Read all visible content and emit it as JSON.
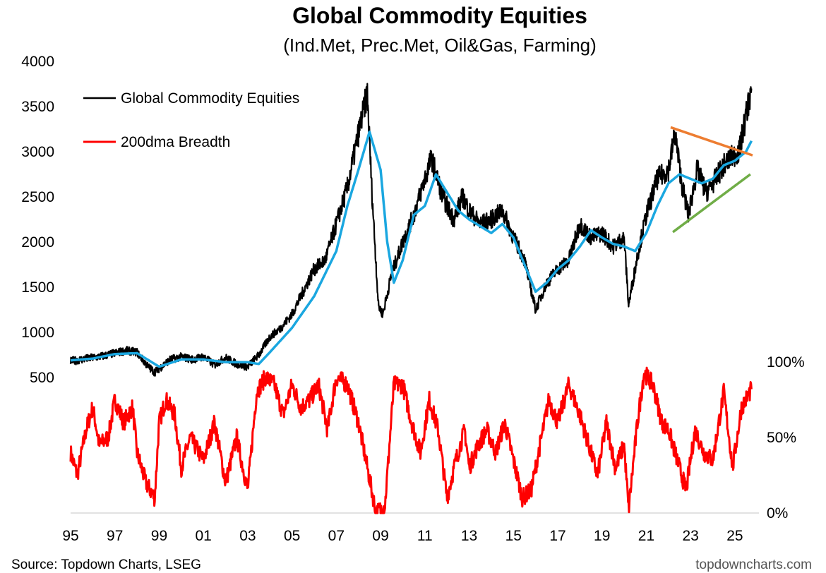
{
  "chart_data": {
    "type": "line",
    "title": "Global Commodity Equities",
    "subtitle": "(Ind.Met, Prec.Met, Oil&Gas, Farming)",
    "left_axis": {
      "ticks": [
        500,
        1000,
        1500,
        2000,
        2500,
        3000,
        3500,
        4000
      ],
      "range": [
        500,
        4000
      ]
    },
    "right_axis": {
      "ticks": [
        "0%",
        "50%",
        "100%"
      ],
      "values": [
        0,
        50,
        100
      ],
      "range": [
        0,
        100
      ]
    },
    "x_ticks": [
      "95",
      "97",
      "99",
      "01",
      "03",
      "05",
      "07",
      "09",
      "11",
      "13",
      "15",
      "17",
      "19",
      "21",
      "23",
      "25"
    ],
    "x_tick_years": [
      1995,
      1997,
      1999,
      2001,
      2003,
      2005,
      2007,
      2009,
      2011,
      2013,
      2015,
      2017,
      2019,
      2021,
      2023,
      2025
    ],
    "x_range": [
      1995,
      2025.8
    ],
    "legend": [
      {
        "label": "Global Commodity Equities",
        "color": "#000000"
      },
      {
        "label": "200dma Breadth",
        "color": "#ff0000"
      }
    ],
    "colors": {
      "index": "#000000",
      "ma": "#1aa7e0",
      "breadth": "#ff0000",
      "resistance": "#ed7d31",
      "support": "#70ad47"
    },
    "series": [
      {
        "name": "Global Commodity Equities",
        "axis": "left",
        "points": [
          [
            1995.0,
            680
          ],
          [
            1995.5,
            700
          ],
          [
            1996.0,
            720
          ],
          [
            1996.5,
            740
          ],
          [
            1997.0,
            770
          ],
          [
            1997.5,
            800
          ],
          [
            1998.0,
            780
          ],
          [
            1998.5,
            620
          ],
          [
            1998.8,
            560
          ],
          [
            1999.0,
            600
          ],
          [
            1999.5,
            700
          ],
          [
            2000.0,
            730
          ],
          [
            2000.5,
            700
          ],
          [
            2001.0,
            730
          ],
          [
            2001.5,
            640
          ],
          [
            2002.0,
            720
          ],
          [
            2002.5,
            650
          ],
          [
            2003.0,
            620
          ],
          [
            2003.5,
            750
          ],
          [
            2004.0,
            950
          ],
          [
            2004.5,
            1050
          ],
          [
            2005.0,
            1200
          ],
          [
            2005.5,
            1450
          ],
          [
            2006.0,
            1700
          ],
          [
            2006.5,
            1800
          ],
          [
            2007.0,
            2200
          ],
          [
            2007.5,
            2600
          ],
          [
            2008.0,
            3200
          ],
          [
            2008.4,
            3650
          ],
          [
            2008.6,
            2600
          ],
          [
            2008.9,
            1300
          ],
          [
            2009.1,
            1200
          ],
          [
            2009.5,
            1650
          ],
          [
            2010.0,
            2000
          ],
          [
            2010.5,
            2300
          ],
          [
            2011.0,
            2700
          ],
          [
            2011.3,
            2930
          ],
          [
            2011.8,
            2500
          ],
          [
            2012.3,
            2250
          ],
          [
            2012.7,
            2500
          ],
          [
            2013.0,
            2350
          ],
          [
            2013.5,
            2200
          ],
          [
            2014.0,
            2250
          ],
          [
            2014.5,
            2350
          ],
          [
            2015.0,
            2050
          ],
          [
            2015.5,
            1800
          ],
          [
            2016.0,
            1250
          ],
          [
            2016.5,
            1550
          ],
          [
            2017.0,
            1700
          ],
          [
            2017.5,
            1800
          ],
          [
            2018.0,
            2200
          ],
          [
            2018.5,
            2050
          ],
          [
            2019.0,
            2100
          ],
          [
            2019.5,
            1950
          ],
          [
            2020.0,
            2050
          ],
          [
            2020.2,
            1300
          ],
          [
            2020.6,
            1850
          ],
          [
            2021.0,
            2300
          ],
          [
            2021.5,
            2700
          ],
          [
            2022.0,
            2800
          ],
          [
            2022.3,
            3200
          ],
          [
            2022.6,
            2650
          ],
          [
            2022.9,
            2300
          ],
          [
            2023.3,
            2800
          ],
          [
            2023.7,
            2550
          ],
          [
            2024.0,
            2650
          ],
          [
            2024.5,
            2850
          ],
          [
            2024.9,
            2950
          ],
          [
            2025.2,
            3000
          ],
          [
            2025.5,
            3400
          ],
          [
            2025.75,
            3700
          ]
        ]
      },
      {
        "name": "200-day moving average",
        "axis": "left",
        "points": [
          [
            1995.0,
            690
          ],
          [
            1996.0,
            710
          ],
          [
            1997.0,
            760
          ],
          [
            1998.0,
            770
          ],
          [
            1999.0,
            620
          ],
          [
            2000.0,
            700
          ],
          [
            2001.0,
            700
          ],
          [
            2002.0,
            670
          ],
          [
            2003.0,
            670
          ],
          [
            2003.5,
            650
          ],
          [
            2004.0,
            780
          ],
          [
            2005.0,
            1050
          ],
          [
            2006.0,
            1400
          ],
          [
            2007.0,
            1900
          ],
          [
            2007.5,
            2400
          ],
          [
            2008.0,
            2800
          ],
          [
            2008.5,
            3220
          ],
          [
            2009.0,
            2800
          ],
          [
            2009.3,
            2000
          ],
          [
            2009.6,
            1550
          ],
          [
            2010.0,
            1800
          ],
          [
            2010.5,
            2300
          ],
          [
            2011.0,
            2400
          ],
          [
            2011.5,
            2750
          ],
          [
            2012.0,
            2550
          ],
          [
            2012.5,
            2350
          ],
          [
            2013.0,
            2250
          ],
          [
            2014.0,
            2100
          ],
          [
            2014.5,
            2200
          ],
          [
            2015.0,
            2050
          ],
          [
            2015.5,
            1750
          ],
          [
            2016.0,
            1450
          ],
          [
            2016.5,
            1550
          ],
          [
            2017.0,
            1700
          ],
          [
            2017.5,
            1800
          ],
          [
            2018.0,
            1950
          ],
          [
            2018.5,
            2130
          ],
          [
            2019.0,
            2050
          ],
          [
            2019.5,
            1980
          ],
          [
            2020.0,
            1950
          ],
          [
            2020.5,
            1900
          ],
          [
            2021.0,
            2100
          ],
          [
            2021.5,
            2400
          ],
          [
            2022.0,
            2650
          ],
          [
            2022.5,
            2750
          ],
          [
            2023.0,
            2700
          ],
          [
            2023.5,
            2650
          ],
          [
            2024.0,
            2700
          ],
          [
            2024.5,
            2850
          ],
          [
            2025.0,
            2900
          ],
          [
            2025.5,
            3000
          ],
          [
            2025.75,
            3120
          ]
        ]
      },
      {
        "name": "200dma Breadth",
        "axis": "right",
        "points": [
          [
            1995.0,
            40
          ],
          [
            1995.3,
            25
          ],
          [
            1995.7,
            55
          ],
          [
            1996.0,
            70
          ],
          [
            1996.3,
            45
          ],
          [
            1996.7,
            50
          ],
          [
            1997.0,
            75
          ],
          [
            1997.4,
            60
          ],
          [
            1997.8,
            70
          ],
          [
            1998.0,
            40
          ],
          [
            1998.4,
            20
          ],
          [
            1998.8,
            10
          ],
          [
            1999.0,
            60
          ],
          [
            1999.3,
            75
          ],
          [
            1999.7,
            65
          ],
          [
            2000.0,
            30
          ],
          [
            2000.4,
            50
          ],
          [
            2000.8,
            40
          ],
          [
            2001.0,
            35
          ],
          [
            2001.5,
            60
          ],
          [
            2002.0,
            20
          ],
          [
            2002.5,
            50
          ],
          [
            2003.0,
            15
          ],
          [
            2003.4,
            80
          ],
          [
            2003.8,
            90
          ],
          [
            2004.2,
            85
          ],
          [
            2004.6,
            65
          ],
          [
            2005.0,
            85
          ],
          [
            2005.4,
            70
          ],
          [
            2005.8,
            75
          ],
          [
            2006.2,
            85
          ],
          [
            2006.6,
            55
          ],
          [
            2007.0,
            90
          ],
          [
            2007.5,
            85
          ],
          [
            2008.0,
            60
          ],
          [
            2008.4,
            30
          ],
          [
            2008.8,
            0
          ],
          [
            2009.2,
            5
          ],
          [
            2009.6,
            85
          ],
          [
            2010.0,
            85
          ],
          [
            2010.4,
            60
          ],
          [
            2010.8,
            40
          ],
          [
            2011.2,
            75
          ],
          [
            2011.6,
            55
          ],
          [
            2012.0,
            10
          ],
          [
            2012.4,
            35
          ],
          [
            2012.8,
            55
          ],
          [
            2013.0,
            30
          ],
          [
            2013.4,
            45
          ],
          [
            2013.8,
            55
          ],
          [
            2014.2,
            40
          ],
          [
            2014.6,
            60
          ],
          [
            2015.0,
            35
          ],
          [
            2015.4,
            10
          ],
          [
            2015.8,
            15
          ],
          [
            2016.2,
            45
          ],
          [
            2016.6,
            75
          ],
          [
            2017.0,
            60
          ],
          [
            2017.5,
            85
          ],
          [
            2018.0,
            65
          ],
          [
            2018.4,
            45
          ],
          [
            2018.8,
            25
          ],
          [
            2019.2,
            60
          ],
          [
            2019.6,
            30
          ],
          [
            2020.0,
            45
          ],
          [
            2020.2,
            2
          ],
          [
            2020.6,
            60
          ],
          [
            2020.9,
            93
          ],
          [
            2021.3,
            85
          ],
          [
            2021.7,
            60
          ],
          [
            2022.0,
            55
          ],
          [
            2022.4,
            35
          ],
          [
            2022.8,
            15
          ],
          [
            2023.2,
            55
          ],
          [
            2023.6,
            40
          ],
          [
            2024.0,
            35
          ],
          [
            2024.5,
            80
          ],
          [
            2024.9,
            30
          ],
          [
            2025.3,
            70
          ],
          [
            2025.75,
            82
          ]
        ]
      }
    ],
    "trendlines": [
      {
        "name": "resistance",
        "color": "#ed7d31",
        "points": [
          [
            2022.1,
            3270
          ],
          [
            2025.8,
            2960
          ]
        ]
      },
      {
        "name": "support",
        "color": "#70ad47",
        "points": [
          [
            2022.2,
            2110
          ],
          [
            2025.7,
            2750
          ]
        ]
      }
    ]
  },
  "footer": {
    "source": "Source: Topdown Charts, LSEG",
    "brand": "topdowncharts.com"
  }
}
